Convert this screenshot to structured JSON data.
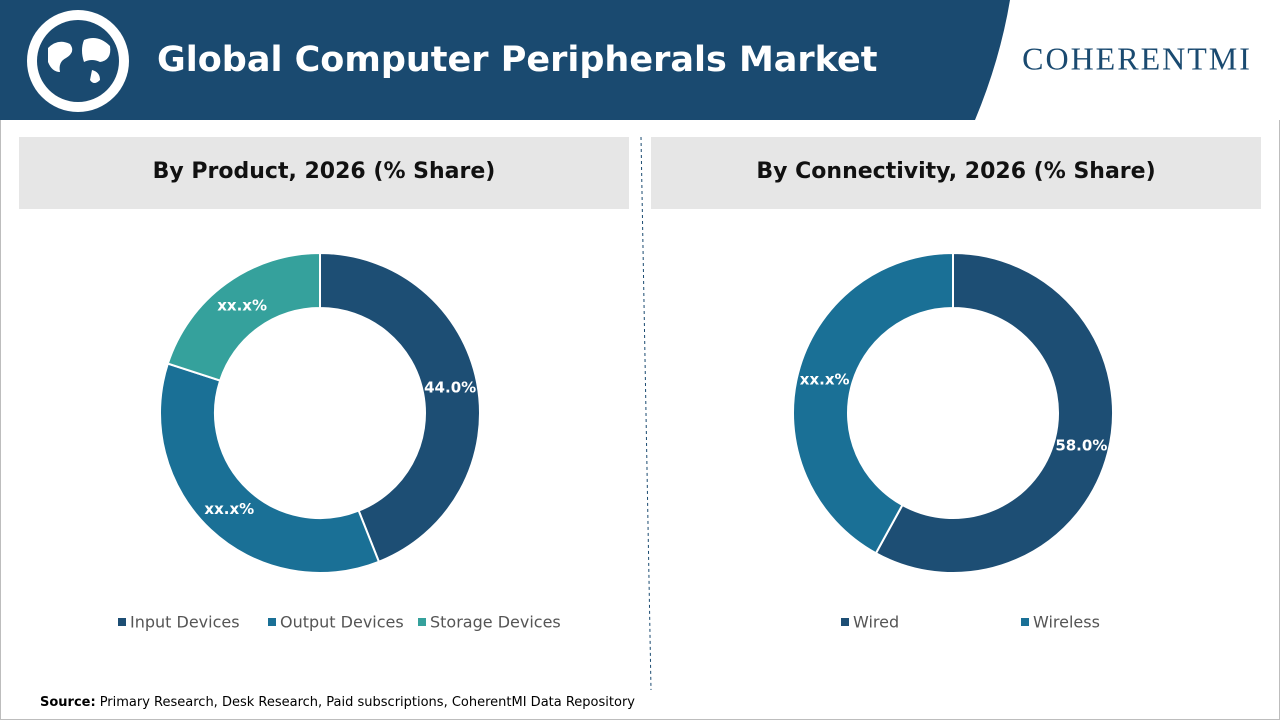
{
  "header": {
    "title": "Global Computer Peripherals Market",
    "logo": "COHERENTMI"
  },
  "source": {
    "label": "Source:",
    "text": "Primary Research, Desk Research, Paid subscriptions, CoherentMI Data Repository"
  },
  "chart_data": [
    {
      "type": "pie",
      "title": "By Product, 2026 (% Share)",
      "categories": [
        "Input Devices",
        "Output Devices",
        "Storage Devices"
      ],
      "values": [
        44.0,
        36,
        20
      ],
      "value_labels": [
        "44.0%",
        "xx.x%",
        "xx.x%"
      ],
      "colors": [
        "#1d4e74",
        "#1a7096",
        "#35a19c"
      ]
    },
    {
      "type": "pie",
      "title": "By Connectivity, 2026 (% Share)",
      "categories": [
        "Wired",
        "Wireless"
      ],
      "values": [
        58.0,
        42
      ],
      "value_labels": [
        "58.0%",
        "xx.x%"
      ],
      "colors": [
        "#1d4e74",
        "#1a7096"
      ]
    }
  ]
}
